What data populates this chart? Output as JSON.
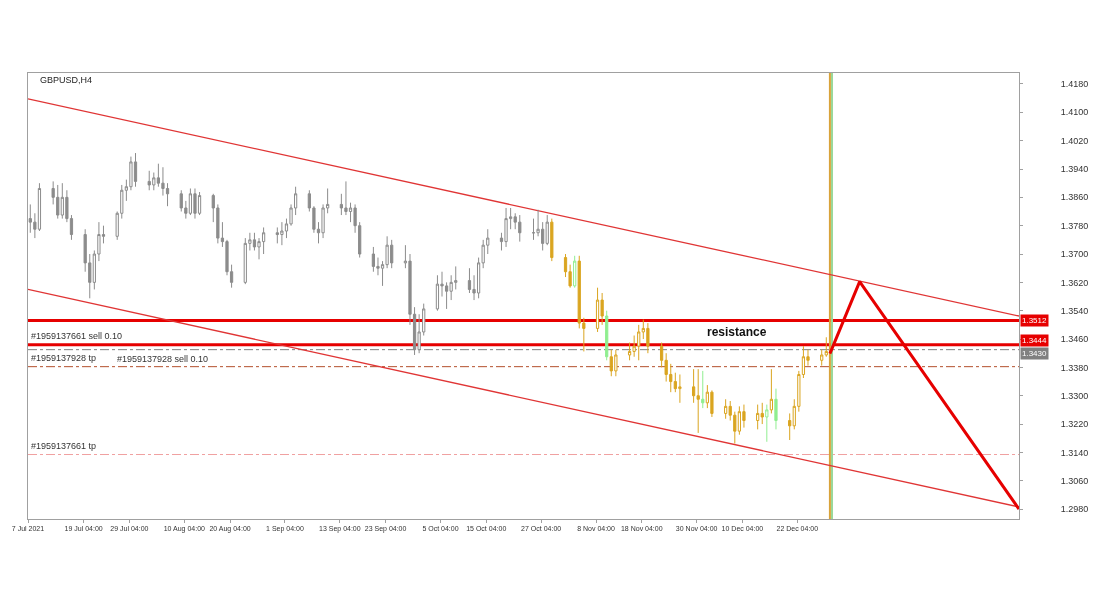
{
  "chart_data": {
    "type": "candlestick",
    "title": "GBPUSD,H4",
    "x": [
      "2021-07-07T12:00",
      "2021-07-08T12:00",
      "2021-07-09T12:00",
      "2021-07-12T12:00",
      "2021-07-13T12:00",
      "2021-07-14T12:00",
      "2021-07-15T12:00",
      "2021-07-16T12:00",
      "2021-07-19T12:00",
      "2021-07-20T12:00",
      "2021-07-21T12:00",
      "2021-07-22T12:00",
      "2021-07-23T12:00",
      "2021-07-26T12:00",
      "2021-07-27T12:00",
      "2021-07-28T12:00",
      "2021-07-29T12:00",
      "2021-07-30T12:00",
      "2021-08-02T12:00",
      "2021-08-03T12:00",
      "2021-08-04T12:00",
      "2021-08-05T12:00",
      "2021-08-06T12:00",
      "2021-08-09T12:00",
      "2021-08-10T12:00",
      "2021-08-11T12:00",
      "2021-08-12T12:00",
      "2021-08-13T12:00",
      "2021-08-16T12:00",
      "2021-08-17T12:00",
      "2021-08-18T12:00",
      "2021-08-19T12:00",
      "2021-08-20T12:00",
      "2021-08-23T12:00",
      "2021-08-24T12:00",
      "2021-08-25T12:00",
      "2021-08-26T12:00",
      "2021-08-27T12:00",
      "2021-08-30T12:00",
      "2021-08-31T12:00",
      "2021-09-01T12:00",
      "2021-09-02T12:00",
      "2021-09-03T12:00",
      "2021-09-06T12:00",
      "2021-09-07T12:00",
      "2021-09-08T12:00",
      "2021-09-09T12:00",
      "2021-09-10T12:00",
      "2021-09-13T12:00",
      "2021-09-14T12:00",
      "2021-09-15T12:00",
      "2021-09-16T12:00",
      "2021-09-17T12:00",
      "2021-09-20T12:00",
      "2021-09-21T12:00",
      "2021-09-22T12:00",
      "2021-09-23T12:00",
      "2021-09-24T12:00",
      "2021-09-27T12:00",
      "2021-09-28T12:00",
      "2021-09-29T12:00",
      "2021-09-30T12:00",
      "2021-10-01T12:00",
      "2021-10-04T12:00",
      "2021-10-05T12:00",
      "2021-10-06T12:00",
      "2021-10-07T12:00",
      "2021-10-08T12:00",
      "2021-10-11T12:00",
      "2021-10-12T12:00",
      "2021-10-13T12:00",
      "2021-10-14T12:00",
      "2021-10-15T12:00",
      "2021-10-18T12:00",
      "2021-10-19T12:00",
      "2021-10-20T12:00",
      "2021-10-21T12:00",
      "2021-10-22T12:00",
      "2021-10-25T12:00",
      "2021-10-26T12:00",
      "2021-10-27T12:00",
      "2021-10-28T12:00",
      "2021-10-29T12:00",
      "2021-11-01T12:00",
      "2021-11-02T12:00",
      "2021-11-03T12:00",
      "2021-11-04T12:00",
      "2021-11-05T12:00",
      "2021-11-08T12:00",
      "2021-11-09T12:00",
      "2021-11-10T12:00",
      "2021-11-11T12:00",
      "2021-11-12T12:00",
      "2021-11-15T12:00",
      "2021-11-16T12:00",
      "2021-11-17T12:00",
      "2021-11-18T12:00",
      "2021-11-19T12:00",
      "2021-11-22T12:00",
      "2021-11-23T12:00",
      "2021-11-24T12:00",
      "2021-11-25T12:00",
      "2021-11-26T12:00",
      "2021-11-29T12:00",
      "2021-11-30T12:00",
      "2021-12-01T12:00",
      "2021-12-02T12:00",
      "2021-12-03T12:00",
      "2021-12-06T12:00",
      "2021-12-07T12:00",
      "2021-12-08T12:00",
      "2021-12-09T12:00",
      "2021-12-10T12:00",
      "2021-12-13T12:00",
      "2021-12-14T12:00",
      "2021-12-15T12:00",
      "2021-12-16T12:00",
      "2021-12-17T12:00",
      "2021-12-20T12:00",
      "2021-12-21T12:00",
      "2021-12-22T12:00",
      "2021-12-23T12:00",
      "2021-12-24T12:00",
      "2021-12-27T12:00",
      "2021-12-28T12:00"
    ],
    "ohlc": [
      [
        1.38,
        1.384,
        1.376,
        1.379
      ],
      [
        1.379,
        1.3815,
        1.3745,
        1.377
      ],
      [
        1.377,
        1.39,
        1.3765,
        1.3885
      ],
      [
        1.3885,
        1.3905,
        1.384,
        1.386
      ],
      [
        1.386,
        1.3895,
        1.38,
        1.381
      ],
      [
        1.381,
        1.39,
        1.38,
        1.386
      ],
      [
        1.386,
        1.388,
        1.379,
        1.38
      ],
      [
        1.38,
        1.381,
        1.374,
        1.3755
      ],
      [
        1.3755,
        1.377,
        1.365,
        1.3675
      ],
      [
        1.3675,
        1.37,
        1.3575,
        1.362
      ],
      [
        1.362,
        1.371,
        1.36,
        1.37
      ],
      [
        1.37,
        1.379,
        1.368,
        1.3755
      ],
      [
        1.3755,
        1.378,
        1.373,
        1.375
      ],
      [
        1.375,
        1.382,
        1.374,
        1.3815
      ],
      [
        1.3815,
        1.3895,
        1.38,
        1.388
      ],
      [
        1.388,
        1.391,
        1.385,
        1.389
      ],
      [
        1.389,
        1.3975,
        1.388,
        1.396
      ],
      [
        1.396,
        1.3985,
        1.389,
        1.3905
      ],
      [
        1.3905,
        1.3935,
        1.388,
        1.3895
      ],
      [
        1.3895,
        1.393,
        1.388,
        1.3915
      ],
      [
        1.3915,
        1.3955,
        1.389,
        1.39
      ],
      [
        1.39,
        1.3945,
        1.3865,
        1.3885
      ],
      [
        1.3885,
        1.39,
        1.3835,
        1.387
      ],
      [
        1.387,
        1.388,
        1.382,
        1.383
      ],
      [
        1.383,
        1.385,
        1.38,
        1.3815
      ],
      [
        1.3815,
        1.3885,
        1.381,
        1.387
      ],
      [
        1.387,
        1.3885,
        1.38,
        1.3815
      ],
      [
        1.3815,
        1.3875,
        1.381,
        1.3865
      ],
      [
        1.3865,
        1.387,
        1.379,
        1.383
      ],
      [
        1.383,
        1.384,
        1.373,
        1.3745
      ],
      [
        1.3745,
        1.379,
        1.372,
        1.3735
      ],
      [
        1.3735,
        1.374,
        1.364,
        1.365
      ],
      [
        1.365,
        1.367,
        1.3605,
        1.362
      ],
      [
        1.362,
        1.3745,
        1.3615,
        1.373
      ],
      [
        1.373,
        1.376,
        1.371,
        1.374
      ],
      [
        1.374,
        1.376,
        1.371,
        1.372
      ],
      [
        1.372,
        1.3745,
        1.3685,
        1.3735
      ],
      [
        1.3735,
        1.3775,
        1.37,
        1.376
      ],
      [
        1.376,
        1.3775,
        1.373,
        1.3755
      ],
      [
        1.3755,
        1.379,
        1.3725,
        1.3765
      ],
      [
        1.3765,
        1.38,
        1.3745,
        1.3785
      ],
      [
        1.3785,
        1.384,
        1.378,
        1.383
      ],
      [
        1.383,
        1.389,
        1.381,
        1.387
      ],
      [
        1.387,
        1.388,
        1.382,
        1.383
      ],
      [
        1.383,
        1.3835,
        1.376,
        1.377
      ],
      [
        1.377,
        1.379,
        1.373,
        1.376
      ],
      [
        1.376,
        1.384,
        1.3745,
        1.383
      ],
      [
        1.383,
        1.3885,
        1.3815,
        1.384
      ],
      [
        1.384,
        1.387,
        1.381,
        1.383
      ],
      [
        1.383,
        1.3905,
        1.381,
        1.382
      ],
      [
        1.382,
        1.3845,
        1.379,
        1.383
      ],
      [
        1.383,
        1.384,
        1.376,
        1.378
      ],
      [
        1.378,
        1.379,
        1.369,
        1.37
      ],
      [
        1.37,
        1.372,
        1.365,
        1.3665
      ],
      [
        1.3665,
        1.369,
        1.364,
        1.366
      ],
      [
        1.366,
        1.368,
        1.361,
        1.367
      ],
      [
        1.367,
        1.375,
        1.366,
        1.3725
      ],
      [
        1.3725,
        1.374,
        1.366,
        1.3675
      ],
      [
        1.3675,
        1.3725,
        1.366,
        1.368
      ],
      [
        1.368,
        1.37,
        1.35,
        1.353
      ],
      [
        1.353,
        1.355,
        1.3415,
        1.343
      ],
      [
        1.343,
        1.353,
        1.342,
        1.348
      ],
      [
        1.348,
        1.356,
        1.347,
        1.3545
      ],
      [
        1.3545,
        1.364,
        1.354,
        1.3615
      ],
      [
        1.3615,
        1.365,
        1.358,
        1.361
      ],
      [
        1.361,
        1.362,
        1.3545,
        1.3595
      ],
      [
        1.3595,
        1.364,
        1.357,
        1.362
      ],
      [
        1.362,
        1.3665,
        1.36,
        1.3625
      ],
      [
        1.3625,
        1.366,
        1.359,
        1.36
      ],
      [
        1.36,
        1.364,
        1.357,
        1.359
      ],
      [
        1.359,
        1.369,
        1.3575,
        1.3675
      ],
      [
        1.3675,
        1.374,
        1.366,
        1.3725
      ],
      [
        1.3725,
        1.377,
        1.37,
        1.3745
      ],
      [
        1.3745,
        1.376,
        1.371,
        1.3735
      ],
      [
        1.3735,
        1.383,
        1.372,
        1.38
      ],
      [
        1.38,
        1.383,
        1.377,
        1.3805
      ],
      [
        1.3805,
        1.3815,
        1.377,
        1.379
      ],
      [
        1.379,
        1.381,
        1.3735,
        1.376
      ],
      [
        1.376,
        1.38,
        1.374,
        1.376
      ],
      [
        1.376,
        1.3825,
        1.375,
        1.377
      ],
      [
        1.377,
        1.379,
        1.371,
        1.373
      ],
      [
        1.373,
        1.381,
        1.3725,
        1.379
      ],
      [
        1.379,
        1.38,
        1.368,
        1.369
      ],
      [
        1.369,
        1.37,
        1.3635,
        1.365
      ],
      [
        1.365,
        1.367,
        1.3605,
        1.361
      ],
      [
        1.361,
        1.3695,
        1.3605,
        1.368
      ],
      [
        1.368,
        1.3695,
        1.349,
        1.3505
      ],
      [
        1.3505,
        1.352,
        1.3425,
        1.349
      ],
      [
        1.349,
        1.3605,
        1.348,
        1.357
      ],
      [
        1.357,
        1.359,
        1.35,
        1.3525
      ],
      [
        1.3525,
        1.354,
        1.34,
        1.341
      ],
      [
        1.341,
        1.343,
        1.3355,
        1.337
      ],
      [
        1.337,
        1.343,
        1.3355,
        1.3415
      ],
      [
        1.3415,
        1.345,
        1.34,
        1.3425
      ],
      [
        1.3425,
        1.347,
        1.341,
        1.344
      ],
      [
        1.344,
        1.35,
        1.34,
        1.348
      ],
      [
        1.348,
        1.3515,
        1.346,
        1.349
      ],
      [
        1.349,
        1.3505,
        1.342,
        1.344
      ],
      [
        1.344,
        1.345,
        1.338,
        1.34
      ],
      [
        1.34,
        1.342,
        1.334,
        1.336
      ],
      [
        1.336,
        1.339,
        1.331,
        1.334
      ],
      [
        1.334,
        1.3365,
        1.331,
        1.332
      ],
      [
        1.332,
        1.336,
        1.328,
        1.3325
      ],
      [
        1.3325,
        1.3375,
        1.328,
        1.33
      ],
      [
        1.33,
        1.3375,
        1.3195,
        1.329
      ],
      [
        1.329,
        1.337,
        1.3265,
        1.328
      ],
      [
        1.328,
        1.333,
        1.3265,
        1.331
      ],
      [
        1.331,
        1.3315,
        1.324,
        1.325
      ],
      [
        1.325,
        1.329,
        1.3235,
        1.327
      ],
      [
        1.327,
        1.3285,
        1.323,
        1.3245
      ],
      [
        1.3245,
        1.3255,
        1.3165,
        1.32
      ],
      [
        1.32,
        1.327,
        1.319,
        1.3255
      ],
      [
        1.3255,
        1.3275,
        1.321,
        1.323
      ],
      [
        1.323,
        1.3275,
        1.3205,
        1.325
      ],
      [
        1.325,
        1.328,
        1.322,
        1.324
      ],
      [
        1.324,
        1.3275,
        1.317,
        1.326
      ],
      [
        1.326,
        1.3375,
        1.325,
        1.329
      ],
      [
        1.329,
        1.332,
        1.3205,
        1.323
      ],
      [
        1.323,
        1.325,
        1.3175,
        1.3215
      ],
      [
        1.3215,
        1.329,
        1.3205,
        1.327
      ],
      [
        1.327,
        1.337,
        1.3255,
        1.336
      ],
      [
        1.336,
        1.344,
        1.335,
        1.341
      ],
      [
        1.341,
        1.343,
        1.3385,
        1.34
      ],
      [
        1.34,
        1.343,
        1.3385,
        1.3415
      ],
      [
        1.3415,
        1.3465,
        1.341,
        1.3425
      ]
    ],
    "colors": [
      "#8c8c8c",
      "#8c8c8c",
      "#8c8c8c",
      "#8c8c8c",
      "#8c8c8c",
      "#8c8c8c",
      "#8c8c8c",
      "#8c8c8c",
      "#8c8c8c",
      "#8c8c8c",
      "#8c8c8c",
      "#8c8c8c",
      "#8c8c8c",
      "#8c8c8c",
      "#8c8c8c",
      "#8c8c8c",
      "#8c8c8c",
      "#8c8c8c",
      "#8c8c8c",
      "#8c8c8c",
      "#8c8c8c",
      "#8c8c8c",
      "#8c8c8c",
      "#8c8c8c",
      "#8c8c8c",
      "#8c8c8c",
      "#8c8c8c",
      "#8c8c8c",
      "#8c8c8c",
      "#8c8c8c",
      "#8c8c8c",
      "#8c8c8c",
      "#8c8c8c",
      "#8c8c8c",
      "#8c8c8c",
      "#8c8c8c",
      "#8c8c8c",
      "#8c8c8c",
      "#8c8c8c",
      "#8c8c8c",
      "#8c8c8c",
      "#8c8c8c",
      "#8c8c8c",
      "#8c8c8c",
      "#8c8c8c",
      "#8c8c8c",
      "#8c8c8c",
      "#8c8c8c",
      "#8c8c8c",
      "#8c8c8c",
      "#8c8c8c",
      "#8c8c8c",
      "#8c8c8c",
      "#8c8c8c",
      "#8c8c8c",
      "#8c8c8c",
      "#8c8c8c",
      "#8c8c8c",
      "#8c8c8c",
      "#8c8c8c",
      "#8c8c8c",
      "#8c8c8c",
      "#8c8c8c",
      "#8c8c8c",
      "#8c8c8c",
      "#8c8c8c",
      "#8c8c8c",
      "#8c8c8c",
      "#8c8c8c",
      "#8c8c8c",
      "#8c8c8c",
      "#8c8c8c",
      "#8c8c8c",
      "#8c8c8c",
      "#8c8c8c",
      "#8c8c8c",
      "#8c8c8c",
      "#8c8c8c",
      "#8c8c8c",
      "#8c8c8c",
      "#8c8c8c",
      "#8c8c8c",
      "#daa520",
      "#daa520",
      "#daa520",
      "#90ee90",
      "#daa520",
      "#daa520",
      "#daa520",
      "#daa520",
      "#90ee90",
      "#daa520",
      "#daa520",
      "#daa520",
      "#daa520",
      "#daa520",
      "#daa520",
      "#daa520",
      "#daa520",
      "#daa520",
      "#daa520",
      "#daa520",
      "#daa520",
      "#daa520",
      "#daa520",
      "#90ee90",
      "#daa520",
      "#daa520",
      "#daa520",
      "#daa520",
      "#daa520",
      "#daa520",
      "#daa520",
      "#daa520",
      "#daa520",
      "#90ee90",
      "#daa520",
      "#90ee90",
      "#daa520",
      "#daa520",
      "#daa520",
      "#daa520",
      "#daa520",
      "#daa520",
      "#daa520"
    ],
    "series": [
      {
        "type": "line",
        "x": [
          "2021-07-07T00:00",
          "2022-02-08T15:00"
        ],
        "values": [
          1.4138,
          1.3525
        ],
        "color": "#e03535"
      },
      {
        "type": "line",
        "x": [
          "2021-07-07T00:00",
          "2022-02-08T15:00"
        ],
        "values": [
          1.36,
          1.2986
        ],
        "color": "#e03535"
      },
      {
        "type": "line",
        "x": [
          "2021-12-29T07:00",
          "2022-01-04T19:00",
          "2022-02-08T15:00"
        ],
        "values": [
          1.3419,
          1.3622,
          1.298
        ],
        "color": "#e60000"
      }
    ],
    "xlim": [
      "2021-07-07T00:00",
      "2022-02-08T15:00"
    ],
    "ylim": [
      1.2952,
      1.4211
    ],
    "xticks": [
      {
        "value": "2021-07-07T00:00",
        "label": "7 Jul 2021"
      },
      {
        "value": "2021-07-19T04:00",
        "label": "19 Jul 04:00"
      },
      {
        "value": "2021-07-29T04:00",
        "label": "29 Jul 04:00"
      },
      {
        "value": "2021-08-10T04:00",
        "label": "10 Aug 04:00"
      },
      {
        "value": "2021-08-20T04:00",
        "label": "20 Aug 04:00"
      },
      {
        "value": "2021-09-01T04:00",
        "label": "1 Sep 04:00"
      },
      {
        "value": "2021-09-13T04:00",
        "label": "13 Sep 04:00"
      },
      {
        "value": "2021-09-23T04:00",
        "label": "23 Sep 04:00"
      },
      {
        "value": "2021-10-05T04:00",
        "label": "5 Oct 04:00"
      },
      {
        "value": "2021-10-15T04:00",
        "label": "15 Oct 04:00"
      },
      {
        "value": "2021-10-27T04:00",
        "label": "27 Oct 04:00"
      },
      {
        "value": "2021-11-08T04:00",
        "label": "8 Nov 04:00"
      },
      {
        "value": "2021-11-18T04:00",
        "label": "18 Nov 04:00"
      },
      {
        "value": "2021-11-30T04:00",
        "label": "30 Nov 04:00"
      },
      {
        "value": "2021-12-10T04:00",
        "label": "10 Dec 04:00"
      },
      {
        "value": "2021-12-22T04:00",
        "label": "22 Dec 04:00"
      }
    ],
    "yticks": [
      {
        "value": 1.418,
        "label": "1.4180"
      },
      {
        "value": 1.41,
        "label": "1.4100"
      },
      {
        "value": 1.402,
        "label": "1.4020"
      },
      {
        "value": 1.394,
        "label": "1.3940"
      },
      {
        "value": 1.386,
        "label": "1.3860"
      },
      {
        "value": 1.378,
        "label": "1.3780"
      },
      {
        "value": 1.37,
        "label": "1.3700"
      },
      {
        "value": 1.362,
        "label": "1.3620"
      },
      {
        "value": 1.354,
        "label": "1.3540"
      },
      {
        "value": 1.346,
        "label": "1.3460"
      },
      {
        "value": 1.338,
        "label": "1.3380"
      },
      {
        "value": 1.33,
        "label": "1.3300"
      },
      {
        "value": 1.322,
        "label": "1.3220"
      },
      {
        "value": 1.314,
        "label": "1.3140"
      },
      {
        "value": 1.306,
        "label": "1.3060"
      },
      {
        "value": 1.298,
        "label": "1.2980"
      }
    ],
    "ref_lines": [
      {
        "axis": "y",
        "value": 1.3512,
        "label": "1.3512",
        "color": "#e60000",
        "line_style": "solid"
      },
      {
        "axis": "y",
        "value": 1.3444,
        "label": "1.3444",
        "color": "#e60000",
        "line_style": "solid"
      },
      {
        "axis": "y",
        "value": 1.343,
        "label": "1.3430",
        "color": "#808080",
        "line_style": "dashed"
      },
      {
        "axis": "y",
        "value": 1.3382,
        "color": "#b4502d",
        "line_style": "dashed"
      },
      {
        "axis": "y",
        "value": 1.3134,
        "color": "#f0a0a0",
        "line_style": "dashed"
      },
      {
        "axis": "x",
        "value": "2021-12-29T07:00",
        "color": "#d9a33a",
        "line_style": "solid"
      },
      {
        "axis": "x",
        "value": "2021-12-29T18:00",
        "color": "#9ad89a",
        "line_style": "solid"
      }
    ],
    "annotations": [
      "resistance",
      {
        "text": "#1959137661 sell 0.10",
        "x": "2021-07-07T04:00",
        "y": 1.3444
      },
      {
        "text": "#1959137928 sell 0.10",
        "x": "2021-07-26T00:00",
        "y": 1.343
      },
      {
        "text": "#1959137928 tp",
        "x": "2021-07-07T04:00",
        "y": 1.3382
      },
      {
        "text": "#1959137661 tp",
        "x": "2021-07-07T04:00",
        "y": 1.3134
      }
    ]
  }
}
